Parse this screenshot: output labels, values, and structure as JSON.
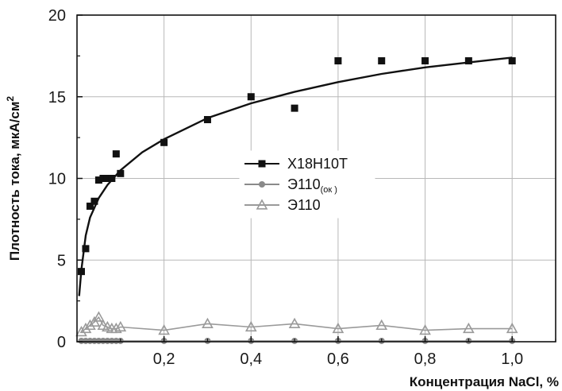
{
  "chart_data": {
    "type": "scatter",
    "title": "",
    "xlabel": "Концентрация NaCl, %",
    "ylabel": "Плотность тока, мкА/см",
    "ylabel_superscript": "2",
    "xlim": [
      0,
      1.1
    ],
    "ylim": [
      0,
      20
    ],
    "x_ticks": [
      0.2,
      0.4,
      0.6,
      0.8,
      1.0
    ],
    "x_tick_labels": [
      "0,2",
      "0,4",
      "0,6",
      "0,8",
      "1,0"
    ],
    "y_ticks": [
      0,
      5,
      10,
      15,
      20
    ],
    "y_tick_labels": [
      "0",
      "5",
      "10",
      "15",
      "20"
    ],
    "grid": true,
    "legend_position": "center",
    "series": [
      {
        "name": "Х18Н10Т",
        "marker": "square",
        "color": "#111111",
        "x": [
          0.01,
          0.02,
          0.03,
          0.04,
          0.05,
          0.06,
          0.07,
          0.08,
          0.09,
          0.1,
          0.2,
          0.3,
          0.4,
          0.5,
          0.6,
          0.7,
          0.8,
          0.9,
          1.0
        ],
        "y": [
          4.3,
          5.7,
          8.3,
          8.6,
          9.9,
          10.0,
          10.0,
          10.0,
          11.5,
          10.3,
          12.2,
          13.6,
          15.0,
          14.3,
          17.2,
          17.2,
          17.2,
          17.2,
          17.2
        ],
        "fit": {
          "x": [
            0.005,
            0.01,
            0.02,
            0.03,
            0.05,
            0.07,
            0.1,
            0.15,
            0.2,
            0.3,
            0.4,
            0.5,
            0.6,
            0.7,
            0.8,
            0.9,
            1.0
          ],
          "y": [
            2.8,
            4.4,
            6.5,
            7.6,
            8.8,
            9.6,
            10.5,
            11.6,
            12.4,
            13.7,
            14.6,
            15.3,
            15.9,
            16.4,
            16.8,
            17.1,
            17.4
          ]
        }
      },
      {
        "name_main": "Э110",
        "name_sub": "(ок )",
        "marker": "circle",
        "color": "#8a8a8a",
        "x": [
          0.01,
          0.02,
          0.03,
          0.04,
          0.05,
          0.06,
          0.07,
          0.08,
          0.09,
          0.1,
          0.2,
          0.3,
          0.4,
          0.5,
          0.6,
          0.7,
          0.8,
          0.9,
          1.0
        ],
        "y": [
          0.05,
          0.05,
          0.05,
          0.05,
          0.05,
          0.05,
          0.05,
          0.05,
          0.05,
          0.05,
          0.05,
          0.05,
          0.05,
          0.05,
          0.05,
          0.05,
          0.05,
          0.05,
          0.05
        ]
      },
      {
        "name": "Э110",
        "marker": "triangle",
        "color": "#9a9a9a",
        "x": [
          0.01,
          0.02,
          0.03,
          0.04,
          0.05,
          0.06,
          0.07,
          0.08,
          0.09,
          0.1,
          0.2,
          0.3,
          0.4,
          0.5,
          0.6,
          0.7,
          0.8,
          0.9,
          1.0
        ],
        "y": [
          0.6,
          0.8,
          1.0,
          1.2,
          1.5,
          1.0,
          0.9,
          0.8,
          0.8,
          0.9,
          0.7,
          1.1,
          0.9,
          1.1,
          0.8,
          1.0,
          0.7,
          0.8,
          0.8
        ]
      }
    ]
  }
}
